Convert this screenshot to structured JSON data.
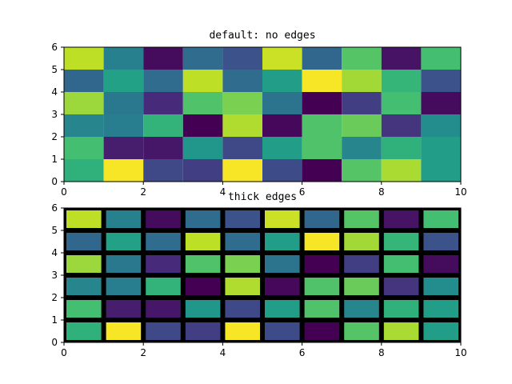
{
  "chart_data": [
    {
      "type": "heatmap",
      "title": "default: no edges",
      "edges": false,
      "xlim": [
        0,
        10
      ],
      "ylim": [
        0,
        6
      ],
      "xticks": [
        0,
        2,
        4,
        6,
        8,
        10
      ],
      "yticks": [
        0,
        1,
        2,
        3,
        4,
        5,
        6
      ],
      "colormap": "viridis",
      "values_rows_top_to_bottom": [
        [
          0.9,
          0.43,
          0.03,
          0.35,
          0.25,
          0.92,
          0.33,
          0.73,
          0.05,
          0.7
        ],
        [
          0.33,
          0.57,
          0.35,
          0.9,
          0.35,
          0.55,
          0.99,
          0.86,
          0.66,
          0.25
        ],
        [
          0.85,
          0.4,
          0.12,
          0.72,
          0.8,
          0.38,
          0.0,
          0.18,
          0.7,
          0.03
        ],
        [
          0.45,
          0.42,
          0.65,
          0.0,
          0.88,
          0.02,
          0.72,
          0.77,
          0.15,
          0.48
        ],
        [
          0.7,
          0.08,
          0.06,
          0.52,
          0.22,
          0.55,
          0.72,
          0.45,
          0.64,
          0.55
        ],
        [
          0.64,
          0.99,
          0.22,
          0.18,
          0.99,
          0.23,
          0.0,
          0.73,
          0.87,
          0.55
        ]
      ]
    },
    {
      "type": "heatmap",
      "title": "thick edges",
      "edges": true,
      "edge_color": "#000000",
      "xlim": [
        0,
        10
      ],
      "ylim": [
        0,
        6
      ],
      "xticks": [
        0,
        2,
        4,
        6,
        8,
        10
      ],
      "yticks": [
        0,
        1,
        2,
        3,
        4,
        5,
        6
      ],
      "colormap": "viridis",
      "values_rows_top_to_bottom": [
        [
          0.9,
          0.43,
          0.03,
          0.35,
          0.25,
          0.92,
          0.33,
          0.73,
          0.05,
          0.7
        ],
        [
          0.33,
          0.57,
          0.35,
          0.9,
          0.35,
          0.55,
          0.99,
          0.86,
          0.66,
          0.25
        ],
        [
          0.85,
          0.4,
          0.12,
          0.72,
          0.8,
          0.38,
          0.0,
          0.18,
          0.7,
          0.03
        ],
        [
          0.45,
          0.42,
          0.65,
          0.0,
          0.88,
          0.02,
          0.72,
          0.77,
          0.15,
          0.48
        ],
        [
          0.7,
          0.08,
          0.06,
          0.52,
          0.22,
          0.55,
          0.72,
          0.45,
          0.64,
          0.55
        ],
        [
          0.64,
          0.99,
          0.22,
          0.18,
          0.99,
          0.23,
          0.0,
          0.73,
          0.87,
          0.55
        ]
      ]
    }
  ]
}
